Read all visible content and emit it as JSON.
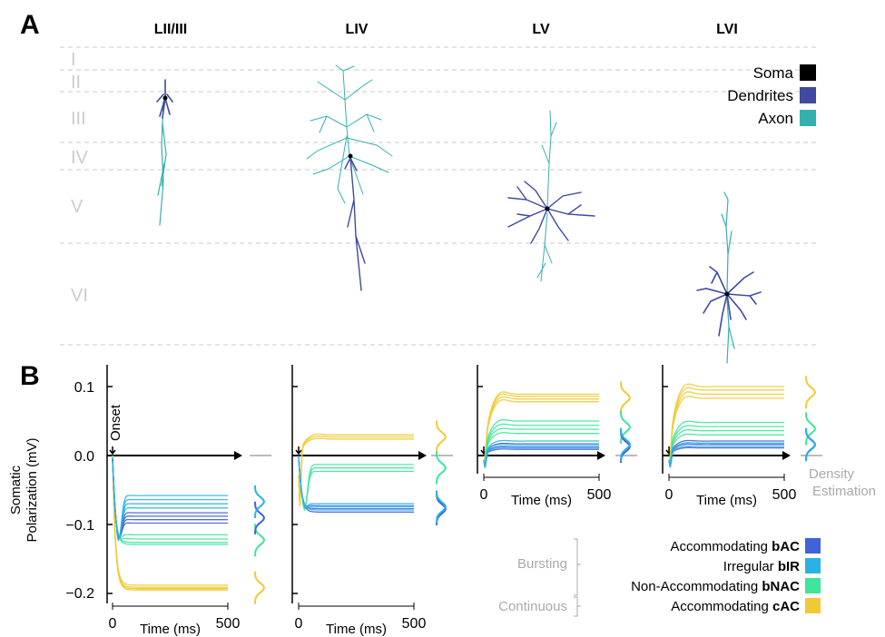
{
  "panel_a": {
    "letter": "A",
    "columns": [
      "LII/III",
      "LIV",
      "LV",
      "LVI"
    ],
    "layers": [
      "I",
      "II",
      "III",
      "IV",
      "V",
      "VI"
    ],
    "legend": [
      {
        "label": "Soma",
        "color": "#000000"
      },
      {
        "label": "Dendrites",
        "color": "#3f4aa0"
      },
      {
        "label": "Axon",
        "color": "#35b0b0"
      }
    ]
  },
  "panel_b": {
    "letter": "B",
    "ylabel_line1": "Somatic",
    "ylabel_line2": "Polarization (mV)",
    "xlabel": "Time (ms)",
    "onset_label": "Onset",
    "density_label_line1": "Density",
    "density_label_line2": "Estimation",
    "group_bursting": "Bursting",
    "group_continuous": "Continuous",
    "etypes": [
      {
        "prefix": "Accommodating ",
        "bold": "bAC",
        "color": "#4262d8"
      },
      {
        "prefix": "Irregular ",
        "bold": "bIR",
        "color": "#2ab2e6"
      },
      {
        "prefix": "Non-Accommodating ",
        "bold": "bNAC",
        "color": "#3ee59a"
      },
      {
        "prefix": "Accommodating ",
        "bold": "cAC",
        "color": "#f0ca36"
      }
    ]
  },
  "chart_data": [
    {
      "type": "line",
      "title": "LII/III",
      "xlabel": "Time (ms)",
      "ylabel": "Somatic Polarization (mV)",
      "xlim": [
        0,
        500
      ],
      "ylim": [
        -0.2,
        0.1
      ],
      "xticks": [
        "0",
        "500"
      ],
      "yticks": [
        "0.1",
        "0.0",
        "−0.1",
        "−0.2"
      ],
      "series": [
        {
          "name": "cAC",
          "steady_states": [
            -0.188,
            -0.191,
            -0.193,
            -0.195
          ],
          "color": "#f0ca36"
        },
        {
          "name": "bNAC",
          "steady_states": [
            -0.115,
            -0.121,
            -0.126,
            -0.129
          ],
          "color": "#3ee59a"
        },
        {
          "name": "bAC",
          "steady_states": [
            -0.083,
            -0.088,
            -0.093,
            -0.098
          ],
          "color": "#4262d8"
        },
        {
          "name": "bIR",
          "steady_states": [
            -0.058,
            -0.064,
            -0.07,
            -0.076
          ],
          "color": "#2ab2e6"
        }
      ]
    },
    {
      "type": "line",
      "title": "LIV",
      "xlabel": "Time (ms)",
      "xlim": [
        0,
        500
      ],
      "ylim": [
        -0.2,
        0.1
      ],
      "xticks": [
        "0",
        "500"
      ],
      "series": [
        {
          "name": "cAC",
          "steady_states": [
            0.024,
            0.027,
            0.03
          ],
          "color": "#f0ca36"
        },
        {
          "name": "bNAC",
          "steady_states": [
            -0.013,
            -0.018,
            -0.023
          ],
          "color": "#3ee59a"
        },
        {
          "name": "bAC",
          "steady_states": [
            -0.073,
            -0.077,
            -0.082
          ],
          "color": "#4262d8"
        },
        {
          "name": "bIR",
          "steady_states": [
            -0.07,
            -0.074,
            -0.079
          ],
          "color": "#2ab2e6"
        }
      ]
    },
    {
      "type": "line",
      "title": "LV",
      "xlabel": "Time (ms)",
      "xlim": [
        0,
        500
      ],
      "ylim": [
        -0.03,
        0.1
      ],
      "xticks": [
        "0",
        "500"
      ],
      "series": [
        {
          "name": "cAC",
          "steady_states": [
            0.078,
            0.082,
            0.086,
            0.089
          ],
          "color": "#f0ca36"
        },
        {
          "name": "bNAC",
          "steady_states": [
            0.032,
            0.038,
            0.044,
            0.05
          ],
          "color": "#3ee59a"
        },
        {
          "name": "bAC",
          "steady_states": [
            0.009,
            0.013,
            0.017
          ],
          "color": "#4262d8"
        },
        {
          "name": "bIR",
          "steady_states": [
            0.011,
            0.016,
            0.021
          ],
          "color": "#2ab2e6"
        }
      ]
    },
    {
      "type": "line",
      "title": "LVI",
      "xlabel": "Time (ms)",
      "xlim": [
        0,
        500
      ],
      "ylim": [
        -0.03,
        0.1
      ],
      "xticks": [
        "0",
        "500"
      ],
      "series": [
        {
          "name": "cAC",
          "steady_states": [
            0.083,
            0.089,
            0.095,
            0.1
          ],
          "color": "#f0ca36"
        },
        {
          "name": "bNAC",
          "steady_states": [
            0.03,
            0.036,
            0.042,
            0.048
          ],
          "color": "#3ee59a"
        },
        {
          "name": "bAC",
          "steady_states": [
            0.011,
            0.016,
            0.021
          ],
          "color": "#4262d8"
        },
        {
          "name": "bIR",
          "steady_states": [
            0.013,
            0.018
          ],
          "color": "#2ab2e6"
        }
      ]
    }
  ]
}
